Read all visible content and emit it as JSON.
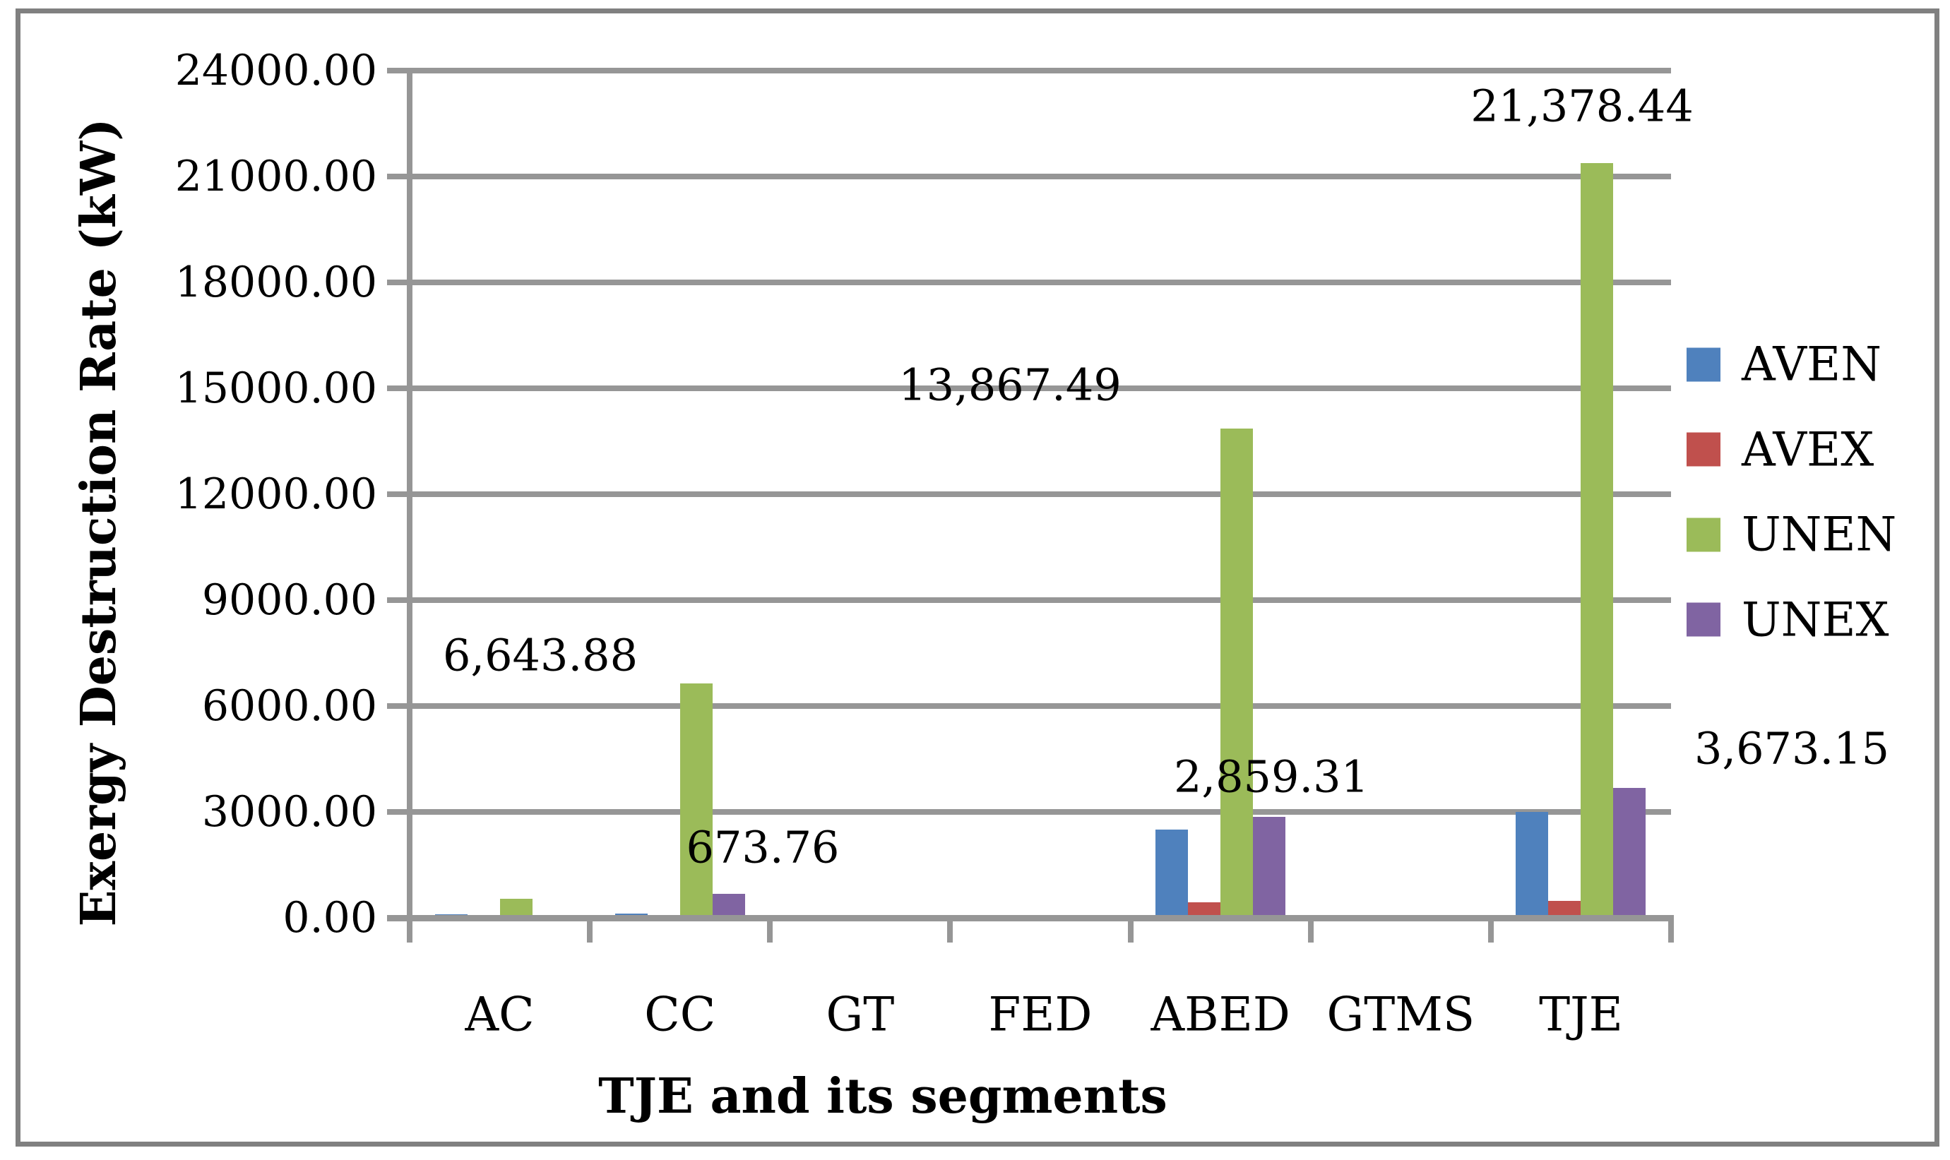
{
  "chart_data": {
    "type": "bar",
    "title": "",
    "xlabel": "TJE and its segments",
    "ylabel": "Exergy Destruction Rate (kW)",
    "categories": [
      "AC",
      "CC",
      "GT",
      "FED",
      "ABED",
      "GTMS",
      "TJE"
    ],
    "series": [
      {
        "name": "AVEN",
        "color": "#4F81BD",
        "values": [
          100,
          130,
          50,
          0,
          2500,
          0,
          3000
        ]
      },
      {
        "name": "AVEX",
        "color": "#C0504D",
        "values": [
          0,
          0,
          0,
          0,
          450,
          0,
          490
        ]
      },
      {
        "name": "UNEN",
        "color": "#9BBB59",
        "values": [
          550,
          6643.88,
          80,
          80,
          13867.49,
          0,
          21378.44
        ]
      },
      {
        "name": "UNEX",
        "color": "#8064A2",
        "values": [
          60,
          673.76,
          0,
          0,
          2859.31,
          0,
          3673.15
        ]
      }
    ],
    "ylim": [
      0,
      24000
    ],
    "ytick_step": 3000,
    "ytick_labels": [
      "24000.00",
      "21000.00",
      "18000.00",
      "15000.00",
      "12000.00",
      "9000.00",
      "6000.00",
      "3000.00",
      "0.00"
    ],
    "grid": "horizontal",
    "legend_position": "right",
    "data_labels": [
      {
        "text": "6,643.88",
        "series": "UNEN",
        "category": "CC"
      },
      {
        "text": "673.76",
        "series": "UNEX",
        "category": "CC"
      },
      {
        "text": "13,867.49",
        "series": "UNEN",
        "category": "ABED"
      },
      {
        "text": "2,859.31",
        "series": "UNEX",
        "category": "ABED"
      },
      {
        "text": "21,378.44",
        "series": "UNEN",
        "category": "TJE"
      },
      {
        "text": "3,673.15",
        "series": "UNEX",
        "category": "TJE"
      }
    ],
    "grid_color": "#969696",
    "border_color": "#808080"
  }
}
